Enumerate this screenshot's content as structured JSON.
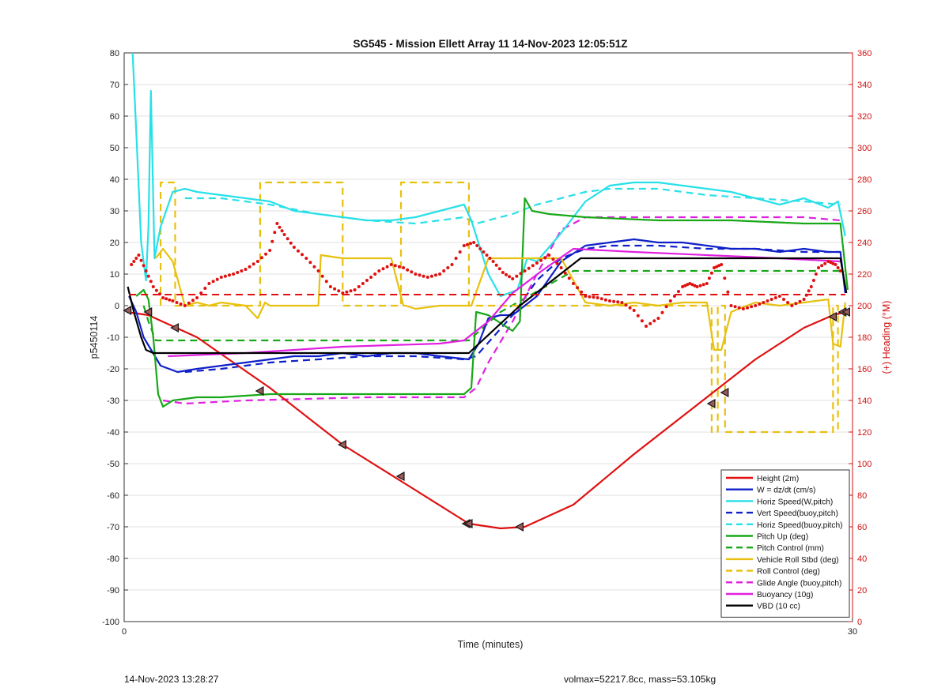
{
  "footer": {
    "timestamp": "14-Nov-2023 13:28:27",
    "info": "volmax=52217.8cc, mass=53.105kg"
  },
  "chart_data": {
    "type": "line",
    "title": "SG545 - Mission Ellett Array 11 14-Nov-2023 12:05:51Z",
    "xlabel": "Time (minutes)",
    "ylabel": "p5450114",
    "y2label": "(+) Heading (°M)",
    "xlim": [
      0,
      30
    ],
    "ylim": [
      -100,
      80
    ],
    "y2lim": [
      0,
      360
    ],
    "xticks": [
      "0",
      "30"
    ],
    "yticks": [
      "-100",
      "-90",
      "-80",
      "-70",
      "-60",
      "-50",
      "-40",
      "-30",
      "-20",
      "-10",
      "0",
      "10",
      "20",
      "30",
      "40",
      "50",
      "60",
      "70",
      "80"
    ],
    "y2ticks": [
      "0",
      "20",
      "40",
      "60",
      "80",
      "100",
      "120",
      "140",
      "160",
      "180",
      "200",
      "220",
      "240",
      "260",
      "280",
      "300",
      "320",
      "340",
      "360"
    ],
    "grid": true,
    "legend_position": "bottom-right",
    "colors": {
      "red": "#e01010",
      "blue": "#1020c8",
      "cyan": "#28e0e8",
      "green": "#18a818",
      "gold": "#e8c010",
      "magenta": "#e020e0",
      "black": "#000000",
      "axis_right": "#d01010"
    },
    "series": [
      {
        "name": "Height (2m)",
        "color": "#e01010",
        "dash": false,
        "x": [
          0.1,
          1,
          3,
          6,
          9,
          11.5,
          14.2,
          15.5,
          16.5,
          18.5,
          21,
          24,
          26,
          28,
          29.2,
          29.7
        ],
        "y": [
          -2,
          -3,
          -10,
          -26,
          -44,
          -56,
          -69,
          -70.5,
          -70,
          -63,
          -47,
          -29,
          -17,
          -7,
          -3,
          -2
        ]
      },
      {
        "name": "W = dz/dt (cm/s)",
        "color": "#1020c8",
        "dash": false,
        "x": [
          0.2,
          0.5,
          0.8,
          1.5,
          2.2,
          3,
          4,
          5,
          6,
          7,
          8,
          9,
          10,
          11,
          12,
          13,
          14.2,
          14.6,
          15,
          15.5,
          16,
          16.5,
          17,
          18,
          19,
          20,
          21,
          22,
          23,
          24,
          25,
          26,
          27,
          28,
          29,
          29.5,
          29.7
        ],
        "y": [
          3,
          -2,
          -10,
          -19,
          -21,
          -20,
          -19,
          -18,
          -17,
          -16,
          -16,
          -15,
          -16,
          -15,
          -15,
          -16,
          -17,
          -12,
          -4,
          -3,
          -3,
          0,
          3,
          14,
          19,
          20,
          21,
          20,
          20,
          19,
          18,
          18,
          17,
          18,
          17,
          17,
          4
        ]
      },
      {
        "name": "Horiz Speed(W,pitch)",
        "color": "#28e0e8",
        "dash": false,
        "x": [
          0.35,
          0.5,
          0.7,
          0.9,
          1.0,
          1.1,
          1.25,
          1.5,
          2,
          2.5,
          3,
          4,
          5,
          6,
          7,
          8,
          9,
          10,
          11,
          12,
          13,
          14,
          14.3,
          15,
          15.5,
          16.2,
          16.6,
          17,
          18,
          19,
          20,
          21,
          22,
          23,
          24,
          25,
          26,
          27,
          28,
          29,
          29.4,
          29.7
        ],
        "y": [
          80,
          55,
          20,
          8,
          25,
          68,
          15,
          25,
          36,
          37,
          36,
          35,
          34,
          33,
          30,
          29,
          28,
          27,
          27,
          28,
          30,
          32,
          27,
          10,
          3,
          5,
          15,
          14,
          23,
          33,
          38,
          39,
          39,
          38,
          37,
          36,
          34,
          32,
          34,
          31,
          33,
          22
        ]
      },
      {
        "name": "Vert Speed(buoy,pitch)",
        "color": "#1020c8",
        "dash": true,
        "x": [
          2.5,
          4,
          6,
          8,
          10,
          12,
          14,
          14.5,
          16,
          17,
          18,
          19,
          20,
          22,
          24,
          26,
          28,
          29.5
        ],
        "y": [
          -21,
          -20,
          -18,
          -17,
          -16,
          -16,
          -17,
          -16,
          -3,
          8,
          15,
          18,
          19,
          19,
          18,
          18,
          17,
          17
        ]
      },
      {
        "name": "Horiz Speed(buoy,pitch)",
        "color": "#28e0e8",
        "dash": true,
        "x": [
          2.5,
          4,
          6,
          8,
          10,
          12,
          14,
          14.5,
          16,
          17,
          18,
          19,
          20,
          22,
          24,
          26,
          28,
          29.5
        ],
        "y": [
          34,
          34,
          32,
          29,
          27,
          26,
          28,
          26,
          29,
          32,
          34,
          36,
          37,
          37,
          35,
          34,
          33,
          32
        ]
      },
      {
        "name": "Pitch Up (deg)",
        "color": "#18a818",
        "dash": false,
        "x": [
          0.5,
          0.8,
          1,
          1.2,
          1.4,
          1.6,
          2,
          3,
          4,
          6,
          8,
          10,
          12,
          14,
          14.3,
          14.5,
          15,
          16,
          16.3,
          16.5,
          16.8,
          17.5,
          19,
          22,
          25,
          28,
          29.5,
          29.8
        ],
        "y": [
          3,
          5,
          2,
          -10,
          -28,
          -32,
          -30,
          -29,
          -29,
          -28,
          -28,
          -28,
          -28,
          -28,
          -26,
          -2,
          -3,
          -8,
          -5,
          34,
          30,
          29,
          28,
          27,
          27,
          26,
          26,
          5
        ]
      },
      {
        "name": "Pitch Control (mm)",
        "color": "#18a818",
        "dash": true,
        "x": [
          0.8,
          1,
          1.3,
          5,
          14.2,
          15.5,
          18.5,
          29.7
        ],
        "y": [
          0,
          -5,
          -11,
          -11,
          -11,
          -2,
          11,
          11
        ]
      },
      {
        "name": "Vehicle Roll Stbd (deg)",
        "color": "#e8c010",
        "dash": false,
        "x": [
          1.3,
          1.6,
          2,
          2.5,
          3,
          3.5,
          4,
          5,
          5.5,
          5.8,
          6,
          7,
          8,
          8.1,
          9,
          9.5,
          10,
          11,
          11.5,
          11.6,
          12,
          13,
          14,
          14.3,
          15,
          16,
          17,
          18,
          19,
          20,
          21,
          22,
          23,
          24,
          24.3,
          24.6,
          25,
          25.3,
          26,
          27,
          28,
          29,
          29.2,
          29.5,
          29.7
        ],
        "y": [
          15,
          18,
          14,
          0,
          1,
          0,
          1,
          0,
          -4,
          1,
          0,
          0,
          0,
          16,
          15,
          15,
          15,
          15,
          0,
          0,
          -1,
          0,
          0,
          0,
          15,
          15,
          15,
          15,
          1,
          0,
          1,
          0,
          1,
          1,
          -14,
          -14,
          -2,
          -1,
          1,
          0,
          1,
          2,
          -12,
          -13,
          1
        ]
      },
      {
        "name": "Roll Control (deg)",
        "color": "#e8c010",
        "dash": true,
        "x": [
          1.5,
          1.5,
          2.1,
          2.1,
          5.6,
          5.6,
          9,
          9,
          11.4,
          11.4,
          14.2,
          14.2,
          24.2,
          24.2,
          24.45,
          24.45,
          24.75,
          24.75,
          29.2,
          29.2,
          29.4,
          29.4
        ],
        "y": [
          0,
          39,
          39,
          0,
          0,
          39,
          39,
          0,
          0,
          39,
          39,
          0,
          0,
          -40,
          -40,
          0,
          0,
          -40,
          -40,
          0,
          0,
          -40
        ]
      },
      {
        "name": "Glide Angle (buoy,pitch)",
        "color": "#e020e0",
        "dash": true,
        "x": [
          1.6,
          2.5,
          5,
          10,
          14,
          14.5,
          15,
          16,
          17,
          18,
          19,
          20,
          22,
          25,
          28,
          29.5
        ],
        "y": [
          -30,
          -31,
          -30,
          -29,
          -29,
          -26,
          -18,
          -5,
          10,
          24,
          28,
          28,
          28,
          28,
          28,
          27
        ]
      },
      {
        "name": "Buoyancy (10g)",
        "color": "#e020e0",
        "dash": false,
        "x": [
          1.8,
          5,
          9,
          13,
          14,
          15,
          16,
          17.2,
          18.5,
          21,
          24,
          27,
          29.5
        ],
        "y": [
          -16,
          -15,
          -13,
          -12,
          -11,
          -5,
          4,
          11,
          18,
          17,
          16,
          15,
          14
        ]
      },
      {
        "name": "VBD (10 cc)",
        "color": "#000000",
        "dash": false,
        "x": [
          0.15,
          0.4,
          0.7,
          0.9,
          1.2,
          2,
          4,
          6,
          8,
          10,
          12,
          14.2,
          16.3,
          18.8,
          20,
          22,
          24,
          26,
          28,
          29.5,
          29.75
        ],
        "y": [
          6,
          -2,
          -10,
          -14,
          -15,
          -15,
          -15,
          -15,
          -15,
          -15,
          -15,
          -15,
          0,
          15,
          15,
          15,
          15,
          15,
          15,
          15,
          4
        ]
      }
    ],
    "heading": {
      "name": "Heading",
      "color": "#e01010",
      "axis": "right",
      "x": [
        0.3,
        0.6,
        0.9,
        1.2,
        1.6,
        2,
        2.5,
        3,
        3.5,
        4,
        4.5,
        5,
        5.5,
        6,
        6.3,
        6.6,
        7,
        7.5,
        8,
        8.5,
        9,
        9.5,
        10,
        10.5,
        11,
        11.5,
        12,
        12.5,
        13,
        13.5,
        14,
        14.4,
        14.8,
        15.2,
        15.6,
        16,
        16.5,
        17,
        17.5,
        18,
        18.5,
        19,
        19.5,
        20,
        20.5,
        21,
        21.5,
        22,
        22.5,
        23,
        23.3,
        23.6,
        24,
        24.3,
        24.6,
        25,
        25.5,
        26,
        26.5,
        27,
        27.5,
        28,
        28.3,
        28.6,
        29,
        29.3,
        29.6
      ],
      "y": [
        226,
        232,
        222,
        212,
        205,
        203,
        200,
        205,
        214,
        218,
        220,
        223,
        228,
        235,
        252,
        245,
        237,
        230,
        222,
        212,
        208,
        210,
        216,
        222,
        226,
        224,
        220,
        218,
        220,
        226,
        238,
        240,
        234,
        228,
        221,
        217,
        222,
        227,
        232,
        224,
        214,
        206,
        205,
        203,
        202,
        197,
        187,
        192,
        203,
        212,
        214,
        212,
        214,
        224,
        226,
        200,
        198,
        200,
        203,
        206,
        200,
        204,
        212,
        224,
        228,
        226,
        220
      ]
    },
    "heading_reference": {
      "name": "Heading reference",
      "color": "#e01010",
      "axis": "right",
      "x": [
        0.2,
        29.7
      ],
      "y": [
        207,
        207
      ]
    },
    "markers": {
      "x": [
        0.15,
        1.0,
        2.1,
        5.6,
        9.0,
        11.4,
        14.1,
        14.2,
        16.3,
        24.2,
        24.75,
        29.2,
        29.6,
        29.75
      ],
      "y": [
        -1.5,
        -2,
        -7,
        -27,
        -44,
        -54,
        -69,
        -69,
        -70,
        -31,
        -27.5,
        -3.5,
        -2,
        -2
      ]
    }
  }
}
